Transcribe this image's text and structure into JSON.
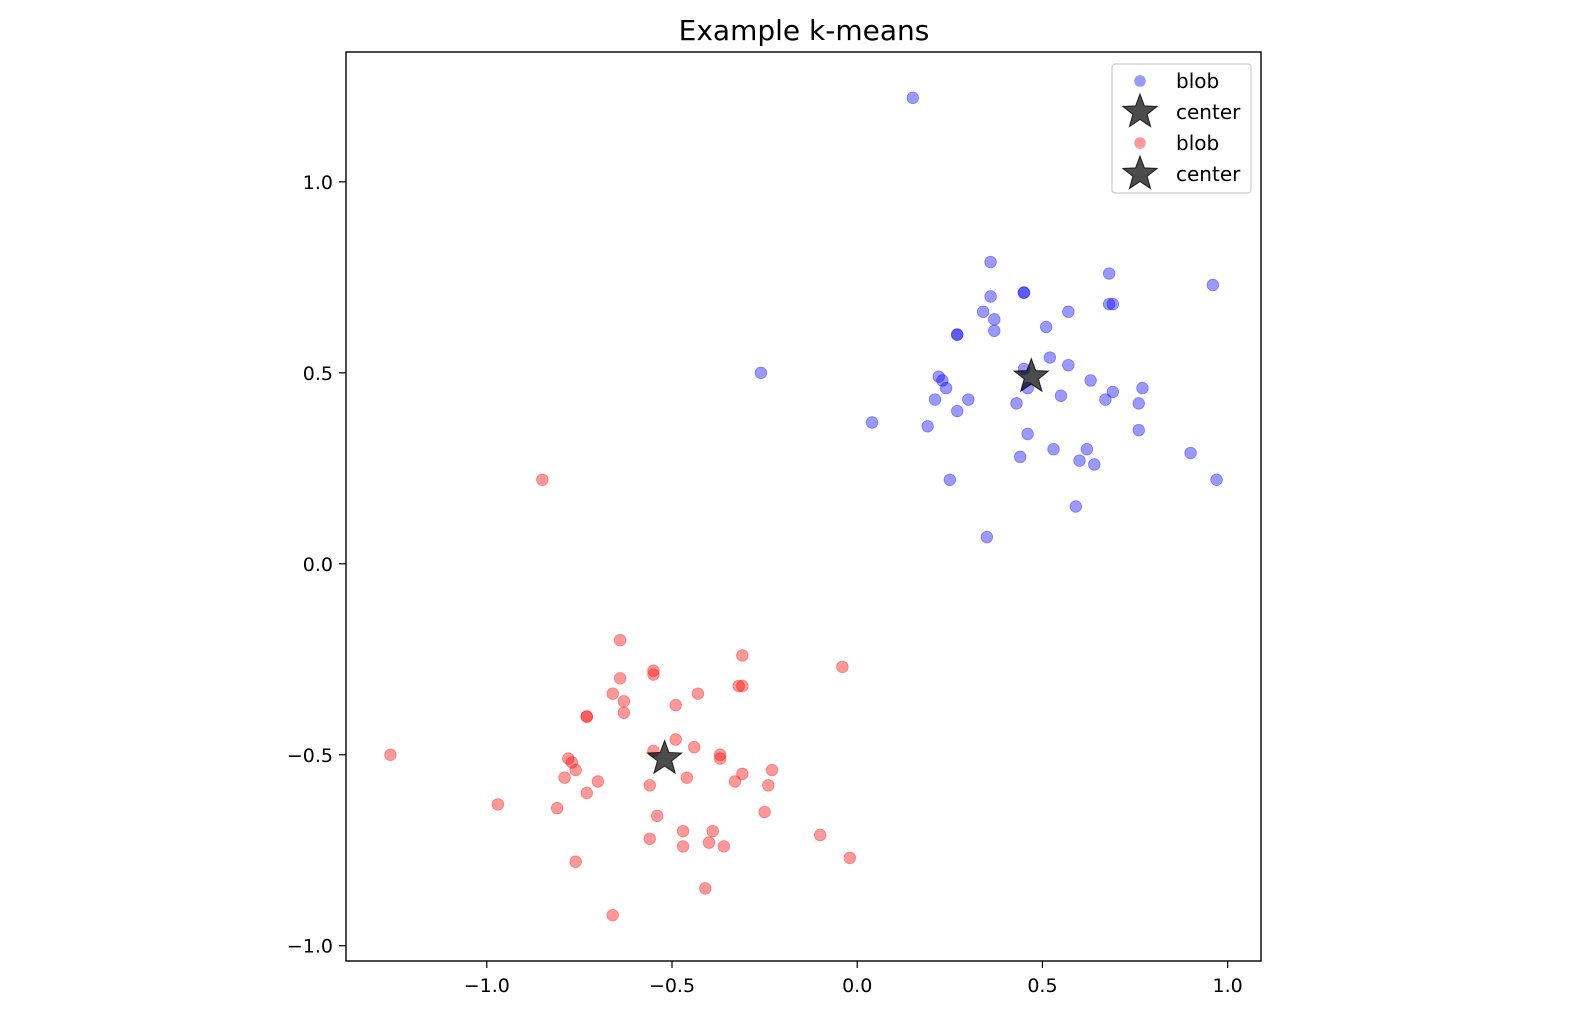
{
  "chart_data": {
    "type": "scatter",
    "title": "Example k-means",
    "xlabel": "",
    "ylabel": "",
    "xlim": [
      -1.38,
      1.09
    ],
    "ylim": [
      -1.04,
      1.34
    ],
    "xticks": [
      -1.0,
      -0.5,
      0.0,
      0.5,
      1.0
    ],
    "xtick_labels": [
      "−1.0",
      "−0.5",
      "0.0",
      "0.5",
      "1.0"
    ],
    "yticks": [
      -1.0,
      -0.5,
      0.0,
      0.5,
      1.0
    ],
    "ytick_labels": [
      "−1.0",
      "−0.5",
      "0.0",
      "0.5",
      "1.0"
    ],
    "grid": false,
    "legend_position": "top-right",
    "series": [
      {
        "name": "blob",
        "kind": "points",
        "color": "#0000ff",
        "alpha": 0.4,
        "points": [
          [
            0.15,
            1.22
          ],
          [
            0.36,
            0.79
          ],
          [
            0.68,
            0.76
          ],
          [
            0.96,
            0.73
          ],
          [
            0.45,
            0.71
          ],
          [
            0.45,
            0.71
          ],
          [
            0.36,
            0.7
          ],
          [
            0.69,
            0.68
          ],
          [
            0.68,
            0.68
          ],
          [
            0.34,
            0.66
          ],
          [
            0.57,
            0.66
          ],
          [
            0.37,
            0.64
          ],
          [
            0.51,
            0.62
          ],
          [
            0.37,
            0.61
          ],
          [
            0.27,
            0.6
          ],
          [
            0.27,
            0.6
          ],
          [
            0.52,
            0.54
          ],
          [
            0.57,
            0.52
          ],
          [
            0.45,
            0.51
          ],
          [
            -0.26,
            0.5
          ],
          [
            0.22,
            0.49
          ],
          [
            0.23,
            0.48
          ],
          [
            0.63,
            0.48
          ],
          [
            0.24,
            0.46
          ],
          [
            0.46,
            0.46
          ],
          [
            0.69,
            0.45
          ],
          [
            0.77,
            0.46
          ],
          [
            0.55,
            0.44
          ],
          [
            0.21,
            0.43
          ],
          [
            0.3,
            0.43
          ],
          [
            0.43,
            0.42
          ],
          [
            0.67,
            0.43
          ],
          [
            0.76,
            0.42
          ],
          [
            0.27,
            0.4
          ],
          [
            0.04,
            0.37
          ],
          [
            0.19,
            0.36
          ],
          [
            0.76,
            0.35
          ],
          [
            0.46,
            0.34
          ],
          [
            0.53,
            0.3
          ],
          [
            0.62,
            0.3
          ],
          [
            0.44,
            0.28
          ],
          [
            0.9,
            0.29
          ],
          [
            0.6,
            0.27
          ],
          [
            0.64,
            0.26
          ],
          [
            0.25,
            0.22
          ],
          [
            0.97,
            0.22
          ],
          [
            0.59,
            0.15
          ],
          [
            0.35,
            0.07
          ]
        ]
      },
      {
        "name": "center",
        "kind": "star",
        "color": "#000000",
        "alpha": 0.7,
        "points": [
          [
            0.47,
            0.49
          ]
        ]
      },
      {
        "name": "blob",
        "kind": "points",
        "color": "#ff0000",
        "alpha": 0.4,
        "points": [
          [
            -0.85,
            0.22
          ],
          [
            -0.64,
            -0.2
          ],
          [
            -0.31,
            -0.24
          ],
          [
            -0.04,
            -0.27
          ],
          [
            -0.55,
            -0.28
          ],
          [
            -0.55,
            -0.29
          ],
          [
            -0.64,
            -0.3
          ],
          [
            -0.32,
            -0.32
          ],
          [
            -0.31,
            -0.32
          ],
          [
            -0.66,
            -0.34
          ],
          [
            -0.43,
            -0.34
          ],
          [
            -0.63,
            -0.36
          ],
          [
            -0.49,
            -0.37
          ],
          [
            -0.63,
            -0.39
          ],
          [
            -0.73,
            -0.4
          ],
          [
            -0.73,
            -0.4
          ],
          [
            -1.26,
            -0.5
          ],
          [
            -0.49,
            -0.46
          ],
          [
            -0.44,
            -0.48
          ],
          [
            -0.55,
            -0.49
          ],
          [
            -0.37,
            -0.5
          ],
          [
            -0.37,
            -0.51
          ],
          [
            -0.78,
            -0.51
          ],
          [
            -0.77,
            -0.52
          ],
          [
            -0.76,
            -0.54
          ],
          [
            -0.31,
            -0.55
          ],
          [
            -0.23,
            -0.54
          ],
          [
            -0.79,
            -0.56
          ],
          [
            -0.46,
            -0.56
          ],
          [
            -0.7,
            -0.57
          ],
          [
            -0.33,
            -0.57
          ],
          [
            -0.56,
            -0.58
          ],
          [
            -0.24,
            -0.58
          ],
          [
            -0.73,
            -0.6
          ],
          [
            -0.97,
            -0.63
          ],
          [
            -0.81,
            -0.64
          ],
          [
            -0.25,
            -0.65
          ],
          [
            -0.54,
            -0.66
          ],
          [
            -0.47,
            -0.7
          ],
          [
            -0.39,
            -0.7
          ],
          [
            -0.1,
            -0.71
          ],
          [
            -0.56,
            -0.72
          ],
          [
            -0.4,
            -0.73
          ],
          [
            -0.47,
            -0.74
          ],
          [
            -0.36,
            -0.74
          ],
          [
            -0.76,
            -0.78
          ],
          [
            -0.02,
            -0.77
          ],
          [
            -0.41,
            -0.85
          ],
          [
            -0.66,
            -0.92
          ]
        ]
      },
      {
        "name": "center",
        "kind": "star",
        "color": "#000000",
        "alpha": 0.7,
        "points": [
          [
            -0.52,
            -0.51
          ]
        ]
      }
    ]
  }
}
